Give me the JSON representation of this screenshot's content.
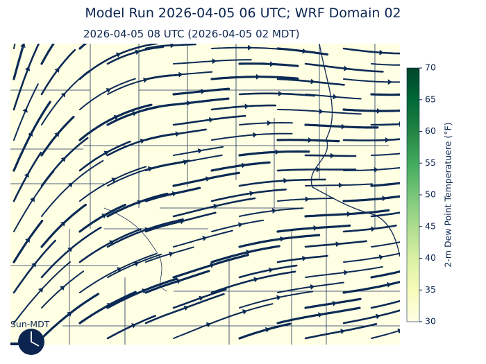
{
  "title": "Model Run 2026-04-05 06 UTC; WRF Domain 02",
  "subtitle": "2026-04-05 08 UTC  (2026-04-05 02 MDT)",
  "colorbar": {
    "label": "2-m Dew Point Temperatuere (°F)",
    "lim": [
      30,
      70
    ],
    "ticks": [
      30,
      35,
      40,
      45,
      50,
      55,
      60,
      65,
      70
    ]
  },
  "clock_label": "Sun-MDT"
}
